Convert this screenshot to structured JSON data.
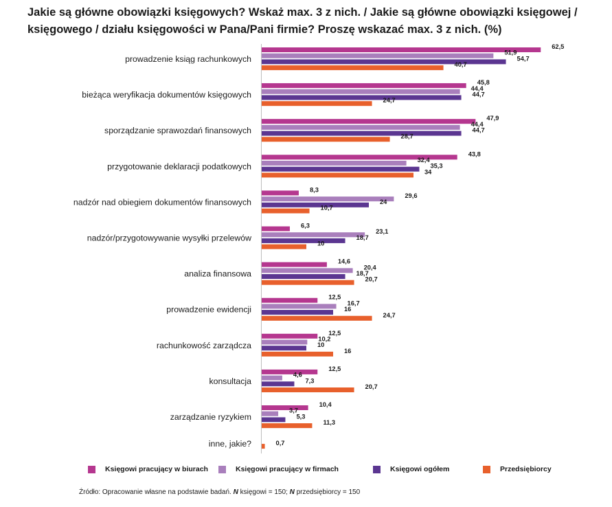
{
  "title": "Jakie są główne obowiązki księgowych? Wskaż max. 3 z nich. / Jakie są główne obowiązki księgowej / księgowego / działu księgowości w Pana/Pani firmie? Proszę wskazać max. 3 z nich. (%)",
  "source": {
    "prefix": "Źródło: Opracowanie własne na podstawie badań. ",
    "n1_symbol": "N",
    "n1_text": " księgowi = 150; ",
    "n2_symbol": "N",
    "n2_text": " przedsiębiorcy = 150"
  },
  "chart_data": {
    "type": "bar",
    "orientation": "horizontal",
    "categories": [
      "prowadzenie ksiąg rachunkowych",
      "bieżąca weryfikacja dokumentów księgowych",
      "sporządzanie sprawozdań finansowych",
      "przygotowanie deklaracji podatkowych",
      "nadzór nad obiegiem dokumentów finansowych",
      "nadzór/przygotowywanie wysyłki przelewów",
      "analiza finansowa",
      "prowadzenie ewidencji",
      "rachunkowość zarządcza",
      "konsultacja",
      "zarządzanie ryzykiem",
      "inne, jakie?"
    ],
    "series": [
      {
        "name": "Księgowi pracujący w biurach",
        "color": "#b5378f",
        "values": [
          62.5,
          45.8,
          47.9,
          43.8,
          8.3,
          6.3,
          14.6,
          12.5,
          12.5,
          12.5,
          10.4,
          null
        ],
        "labels": [
          "62,5",
          "45,8",
          "47,9",
          "43,8",
          "8,3",
          "6,3",
          "14,6",
          "12,5",
          "12,5",
          "12,5",
          "10,4",
          ""
        ]
      },
      {
        "name": "Księgowi pracujący w firmach",
        "color": "#a97fbc",
        "values": [
          51.9,
          44.4,
          44.4,
          32.4,
          29.6,
          23.1,
          20.4,
          16.7,
          10.2,
          4.6,
          3.7,
          null
        ],
        "labels": [
          "51,9",
          "44,4",
          "44,4",
          "32,4",
          "29,6",
          "23,1",
          "20,4",
          "16,7",
          "10,2",
          "4,6",
          "3,7",
          ""
        ]
      },
      {
        "name": "Księgowi ogółem",
        "color": "#5b3691",
        "values": [
          54.7,
          44.7,
          44.7,
          35.3,
          24,
          18.7,
          18.7,
          16,
          10,
          7.3,
          5.3,
          null
        ],
        "labels": [
          "54,7",
          "44,7",
          "44,7",
          "35,3",
          "24",
          "18,7",
          "18,7",
          "16",
          "10",
          "7,3",
          "5,3",
          ""
        ]
      },
      {
        "name": "Przedsiębiorcy",
        "color": "#e8602c",
        "values": [
          40.7,
          24.7,
          28.7,
          34,
          10.7,
          10,
          20.7,
          24.7,
          16,
          20.7,
          11.3,
          0.7
        ],
        "labels": [
          "40,7",
          "24,7",
          "28,7",
          "34",
          "10,7",
          "10",
          "20,7",
          "24,7",
          "16",
          "20,7",
          "11,3",
          "0,7"
        ]
      }
    ],
    "xlim": [
      0,
      65
    ],
    "grid": false,
    "legend_position": "bottom"
  }
}
